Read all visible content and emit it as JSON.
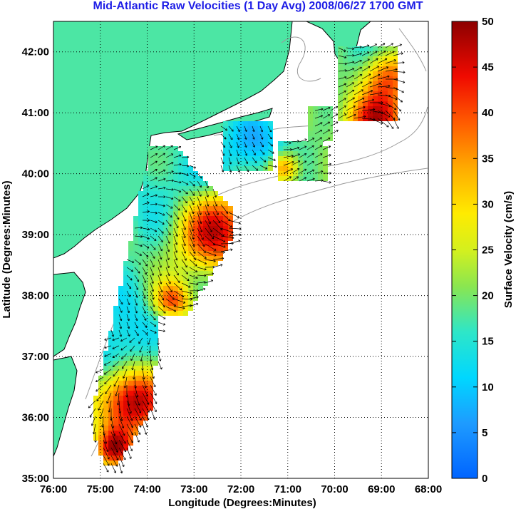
{
  "title": "Mid-Atlantic Raw Velocities (1 Day Avg) 2008/06/27 1700 GMT",
  "map": {
    "xlabel": "Longitude (Degrees:Minutes)",
    "ylabel": "Latitude (Degrees:Minutes)",
    "lon_range": [
      -76,
      -68
    ],
    "lat_range": [
      35,
      42.5
    ],
    "x_ticks": [
      "76:00",
      "75:00",
      "74:00",
      "73:00",
      "72:00",
      "71:00",
      "70:00",
      "69:00",
      "68:00"
    ],
    "y_ticks": [
      "35:00",
      "36:00",
      "37:00",
      "38:00",
      "39:00",
      "40:00",
      "41:00",
      "42:00"
    ],
    "grid": "dotted",
    "colors": {
      "land": "#4ce6a4",
      "ocean": "#ffffff",
      "coast": "#000000",
      "isobath": "#999999",
      "arrow": "#000000"
    }
  },
  "colorbar": {
    "label": "Surface Velocity (cm/s)",
    "min": 0,
    "max": 50,
    "ticks": [
      "0",
      "5",
      "10",
      "15",
      "20",
      "25",
      "30",
      "35",
      "40",
      "45",
      "50"
    ],
    "colormap": "jet"
  }
}
